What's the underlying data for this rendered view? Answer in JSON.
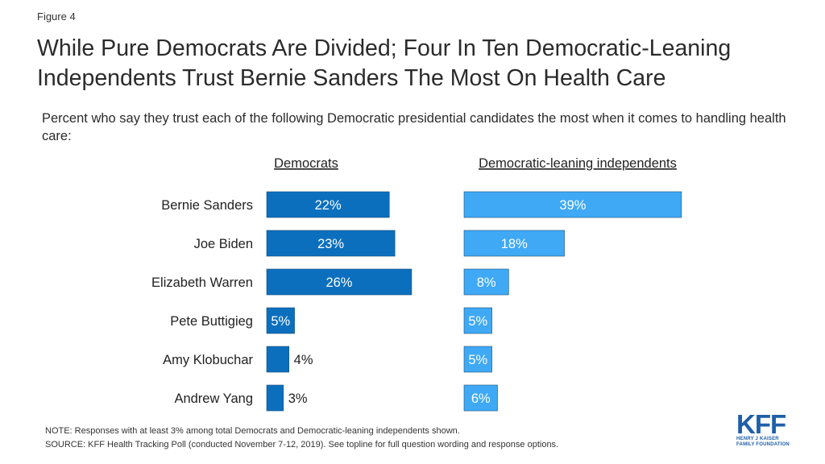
{
  "figure_label": "Figure 4",
  "title": "While Pure Democrats Are Divided; Four In Ten Democratic-Leaning Independents Trust Bernie Sanders The Most On Health Care",
  "subtitle": "Percent who say they trust each of the following Democratic presidential candidates the most when it comes to handling health care:",
  "note": "NOTE: Responses with at least 3% among total Democrats and Democratic-leaning independents shown.",
  "source": "SOURCE: KFF Health Tracking Poll (conducted November 7-12, 2019). See topline for full question wording and response options.",
  "logo": {
    "text": "KFF",
    "subtext_line1": "HENRY J KAISER",
    "subtext_line2": "FAMILY FOUNDATION"
  },
  "colors": {
    "democrats": "#0b6fbe",
    "independents": "#3fa9f5",
    "text": "#222222"
  },
  "chart_data": {
    "type": "bar",
    "orientation": "horizontal",
    "categories": [
      "Bernie Sanders",
      "Joe Biden",
      "Elizabeth Warren",
      "Pete Buttigieg",
      "Amy Klobuchar",
      "Andrew Yang"
    ],
    "series": [
      {
        "name": "Democrats",
        "values": [
          22,
          23,
          26,
          5,
          4,
          3
        ],
        "labels": [
          "22%",
          "23%",
          "26%",
          "5%",
          "4%",
          "3%"
        ]
      },
      {
        "name": "Democratic-leaning independents",
        "values": [
          39,
          18,
          8,
          5,
          5,
          6
        ],
        "labels": [
          "39%",
          "18%",
          "8%",
          "5%",
          "5%",
          "6%"
        ]
      }
    ],
    "unit": "%"
  }
}
